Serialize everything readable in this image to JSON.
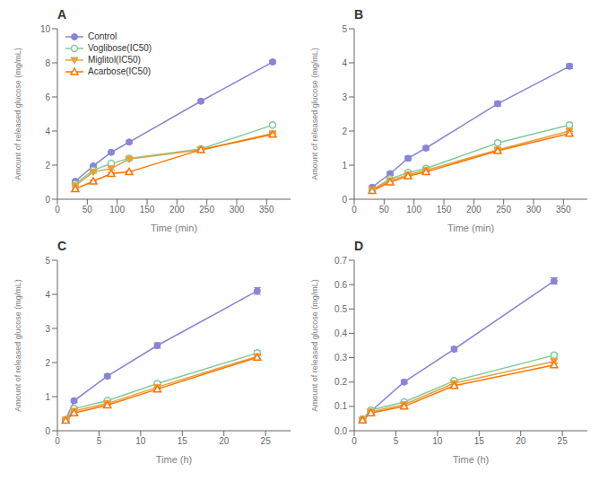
{
  "chart_data": [
    {
      "type": "line",
      "title": "A",
      "xlabel": "Time (min)",
      "ylabel": "Amount of released glucose (mg/mL)",
      "xlim": [
        0,
        390
      ],
      "ylim": [
        0,
        10
      ],
      "xticks": [
        0,
        50,
        100,
        150,
        200,
        250,
        300,
        350
      ],
      "yticks": [
        0,
        2,
        4,
        6,
        8,
        10
      ],
      "grid": false,
      "legend": "upper left",
      "x": [
        30,
        60,
        90,
        120,
        240,
        360
      ],
      "series": [
        {
          "name": "Control",
          "marker": "circle",
          "values": [
            1.05,
            1.95,
            2.75,
            3.35,
            5.75,
            8.05
          ],
          "errors": [
            0.05,
            0.07,
            0.07,
            0.08,
            0.08,
            0.09
          ]
        },
        {
          "name": "Voglibose(IC50)",
          "marker": "open_circle",
          "values": [
            0.9,
            1.7,
            2.1,
            2.4,
            2.95,
            4.35
          ],
          "errors": [
            0.06,
            0.07,
            0.08,
            0.08,
            0.08,
            0.09
          ]
        },
        {
          "name": "Miglitol(IC50)",
          "marker": "triangle_down",
          "values": [
            0.8,
            1.6,
            1.8,
            2.35,
            2.9,
            3.85
          ],
          "errors": [
            0.06,
            0.07,
            0.08,
            0.08,
            0.08,
            0.08
          ]
        },
        {
          "name": "Acarbose(IC50)",
          "marker": "open_triangle_up",
          "values": [
            0.6,
            1.05,
            1.5,
            1.6,
            2.9,
            3.8
          ],
          "errors": [
            0.05,
            0.06,
            0.07,
            0.07,
            0.08,
            0.08
          ]
        }
      ]
    },
    {
      "type": "line",
      "title": "B",
      "xlabel": "Time (min)",
      "ylabel": "Amount of released glucose (mg/mL)",
      "xlim": [
        0,
        390
      ],
      "ylim": [
        0,
        5
      ],
      "xticks": [
        0,
        50,
        100,
        150,
        200,
        250,
        300,
        350
      ],
      "yticks": [
        0,
        1,
        2,
        3,
        4,
        5
      ],
      "grid": false,
      "x": [
        30,
        60,
        90,
        120,
        240,
        360
      ],
      "series": [
        {
          "name": "Control",
          "marker": "circle",
          "values": [
            0.35,
            0.75,
            1.2,
            1.5,
            2.8,
            3.9
          ],
          "errors": [
            0.04,
            0.05,
            0.06,
            0.06,
            0.07,
            0.07
          ]
        },
        {
          "name": "Voglibose(IC50)",
          "marker": "open_circle",
          "values": [
            0.27,
            0.6,
            0.78,
            0.9,
            1.65,
            2.18
          ],
          "errors": [
            0.03,
            0.04,
            0.05,
            0.05,
            0.06,
            0.06
          ]
        },
        {
          "name": "Miglitol(IC50)",
          "marker": "triangle_down",
          "values": [
            0.27,
            0.55,
            0.72,
            0.85,
            1.45,
            2.0
          ],
          "errors": [
            0.03,
            0.04,
            0.05,
            0.05,
            0.06,
            0.06
          ]
        },
        {
          "name": "Acarbose(IC50)",
          "marker": "open_triangle_up",
          "values": [
            0.25,
            0.5,
            0.68,
            0.8,
            1.42,
            1.93
          ],
          "errors": [
            0.03,
            0.04,
            0.05,
            0.05,
            0.06,
            0.06
          ]
        }
      ]
    },
    {
      "type": "line",
      "title": "C",
      "xlabel": "Time (h)",
      "ylabel": "Amount of released glucose (mg/mL)",
      "xlim": [
        0,
        28
      ],
      "ylim": [
        0,
        5
      ],
      "xticks": [
        0,
        5,
        10,
        15,
        20,
        25
      ],
      "yticks": [
        0,
        1,
        2,
        3,
        4,
        5
      ],
      "grid": false,
      "x": [
        1,
        2,
        6,
        12,
        24
      ],
      "series": [
        {
          "name": "Control",
          "marker": "circle",
          "values": [
            0.32,
            0.88,
            1.6,
            2.5,
            4.1
          ],
          "errors": [
            0.03,
            0.05,
            0.06,
            0.08,
            0.1
          ]
        },
        {
          "name": "Voglibose(IC50)",
          "marker": "open_circle",
          "values": [
            0.32,
            0.65,
            0.88,
            1.38,
            2.28
          ],
          "errors": [
            0.03,
            0.04,
            0.05,
            0.06,
            0.07
          ]
        },
        {
          "name": "Miglitol(IC50)",
          "marker": "triangle_down",
          "values": [
            0.32,
            0.58,
            0.8,
            1.28,
            2.18
          ],
          "errors": [
            0.03,
            0.04,
            0.05,
            0.06,
            0.07
          ]
        },
        {
          "name": "Acarbose(IC50)",
          "marker": "open_triangle_up",
          "values": [
            0.3,
            0.52,
            0.75,
            1.22,
            2.15
          ],
          "errors": [
            0.03,
            0.04,
            0.05,
            0.06,
            0.07
          ]
        }
      ]
    },
    {
      "type": "line",
      "title": "D",
      "xlabel": "Time (h)",
      "ylabel": "Amount of released glucose (mg/mL)",
      "xlim": [
        0,
        28
      ],
      "ylim": [
        0.0,
        0.7
      ],
      "xticks": [
        0,
        5,
        10,
        15,
        20,
        25
      ],
      "yticks": [
        {
          "value": 0.0,
          "label": "0.0"
        },
        0.1,
        0.2,
        0.3,
        0.4,
        0.5,
        0.6,
        0.7
      ],
      "grid": false,
      "x": [
        1,
        2,
        6,
        12,
        24
      ],
      "series": [
        {
          "name": "Control",
          "marker": "circle",
          "values": [
            0.048,
            0.08,
            0.2,
            0.335,
            0.615
          ],
          "errors": [
            0.004,
            0.005,
            0.007,
            0.01,
            0.013
          ]
        },
        {
          "name": "Voglibose(IC50)",
          "marker": "open_circle",
          "values": [
            0.047,
            0.085,
            0.118,
            0.205,
            0.31
          ],
          "errors": [
            0.003,
            0.004,
            0.005,
            0.007,
            0.009
          ]
        },
        {
          "name": "Miglitol(IC50)",
          "marker": "triangle_down",
          "values": [
            0.045,
            0.078,
            0.108,
            0.195,
            0.285
          ],
          "errors": [
            0.003,
            0.004,
            0.005,
            0.006,
            0.008
          ]
        },
        {
          "name": "Acarbose(IC50)",
          "marker": "open_triangle_up",
          "values": [
            0.043,
            0.073,
            0.1,
            0.185,
            0.27
          ],
          "errors": [
            0.003,
            0.004,
            0.005,
            0.006,
            0.008
          ]
        }
      ]
    }
  ]
}
